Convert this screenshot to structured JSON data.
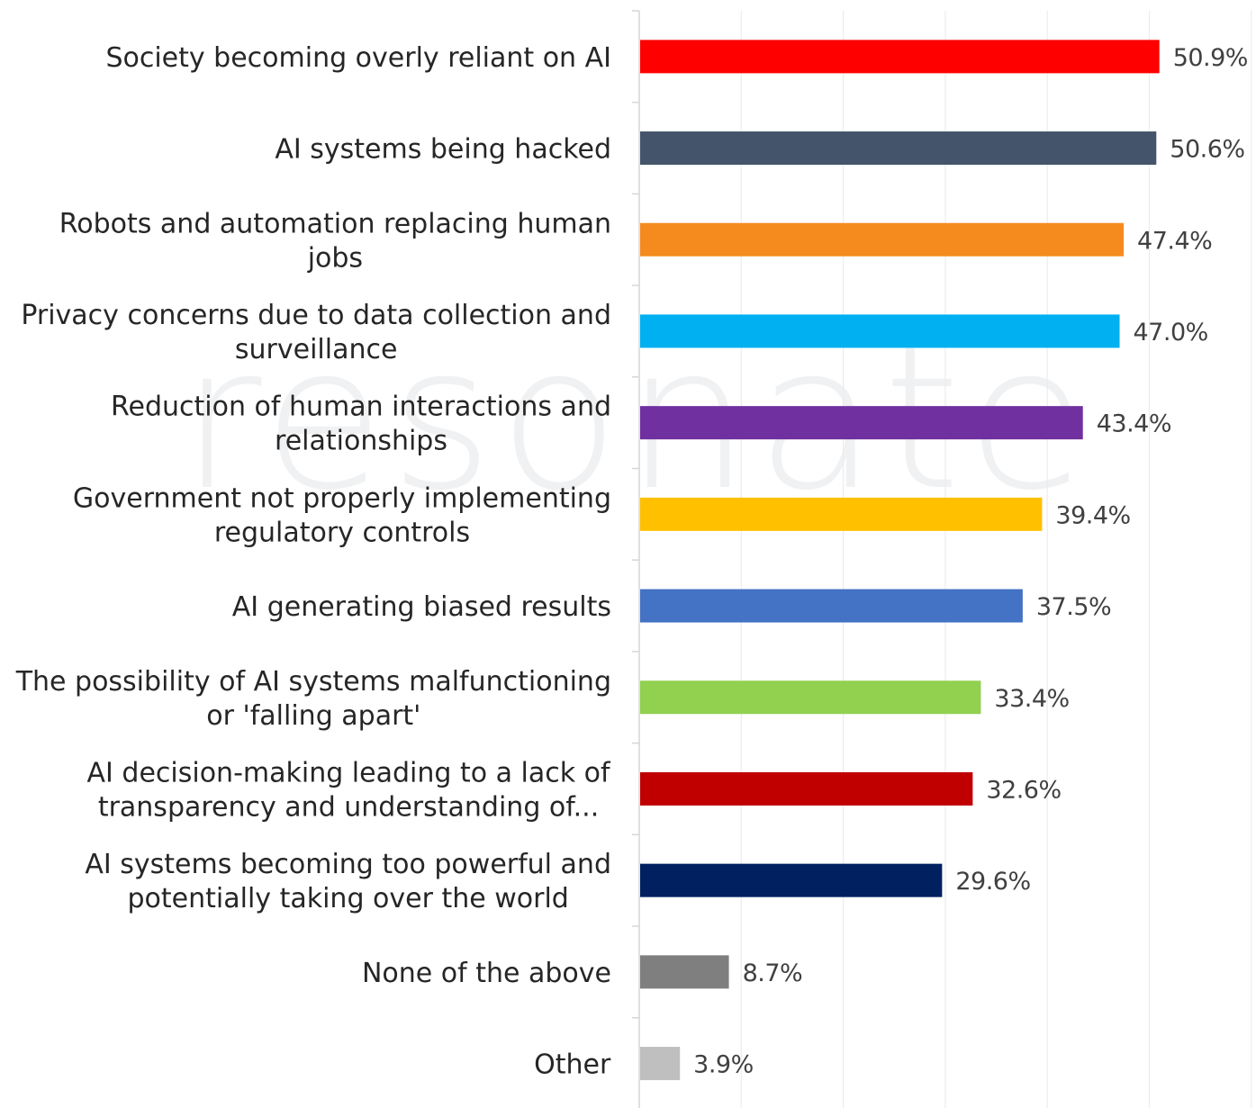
{
  "watermark": "resonate",
  "chart_data": {
    "type": "bar",
    "orientation": "horizontal",
    "title": "",
    "xlabel": "",
    "ylabel": "",
    "xlim": [
      0,
      60
    ],
    "grid": "vertical",
    "value_suffix": "%",
    "categories": [
      [
        "Society becoming overly reliant on AI"
      ],
      [
        "AI systems being hacked"
      ],
      [
        "Robots and automation replacing human",
        "jobs"
      ],
      [
        "Privacy concerns due to data collection and",
        "surveillance"
      ],
      [
        "Reduction of human interactions and",
        "relationships"
      ],
      [
        "Government not properly implementing",
        "regulatory controls"
      ],
      [
        "AI generating biased results"
      ],
      [
        "The possibility of AI systems malfunctioning",
        "or 'falling apart'"
      ],
      [
        "AI decision-making leading to a lack of",
        "transparency and understanding of..."
      ],
      [
        "AI systems becoming too powerful and",
        "potentially taking over the world"
      ],
      [
        "None of the above"
      ],
      [
        "Other"
      ]
    ],
    "values": [
      50.9,
      50.6,
      47.4,
      47.0,
      43.4,
      39.4,
      37.5,
      33.4,
      32.6,
      29.6,
      8.7,
      3.9
    ],
    "data_labels": [
      "50.9%",
      "50.6%",
      "47.4%",
      "47.0%",
      "43.4%",
      "39.4%",
      "37.5%",
      "33.4%",
      "32.6%",
      "29.6%",
      "8.7%",
      "3.9%"
    ],
    "colors": [
      "#ff0000",
      "#44546a",
      "#f58b1f",
      "#00b0f0",
      "#7030a0",
      "#ffc000",
      "#4472c4",
      "#92d050",
      "#c00000",
      "#002060",
      "#7f7f7f",
      "#bfbfbf"
    ]
  }
}
